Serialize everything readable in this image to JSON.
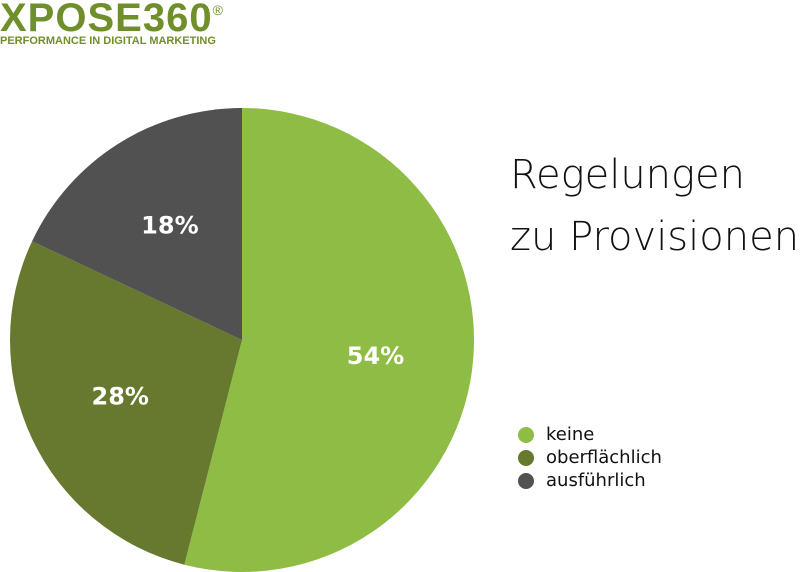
{
  "logo": {
    "name": "XPOSE360",
    "mark": "®",
    "tagline": "PERFORMANCE IN DIGITAL MARKETING"
  },
  "chart_data": {
    "type": "pie",
    "title": "Regelungen zu Provisionen",
    "categories": [
      "keine",
      "oberflächlich",
      "ausführlich"
    ],
    "values": [
      54,
      28,
      18
    ],
    "value_labels": [
      "54%",
      "28%",
      "18%"
    ],
    "colors": [
      "#8fbc45",
      "#66792e",
      "#515151"
    ],
    "legend": "right"
  }
}
